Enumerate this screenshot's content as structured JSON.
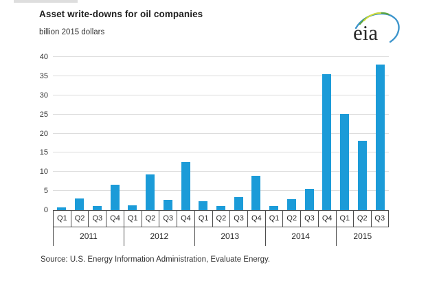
{
  "header": {
    "title": "Asset write-downs for oil companies",
    "subtitle": "billion 2015 dollars"
  },
  "logo": {
    "text": "eia"
  },
  "source": {
    "text": "Source:  U.S. Energy Information Administration, Evaluate Energy."
  },
  "colors": {
    "bar": "#1b9bd8",
    "gridline": "#dcdcdc",
    "axis": "#4d4d4d",
    "text": "#333333",
    "logo_swoosh_blue": "#3d95cc",
    "logo_swoosh_green": "#5ba53f",
    "logo_swoosh_yellow": "#d4db3a"
  },
  "chart_data": {
    "type": "bar",
    "title": "Asset write-downs for oil companies",
    "ylabel": "billion 2015 dollars",
    "ylim": [
      0,
      40
    ],
    "ytick_step": 5,
    "grid": true,
    "legend": false,
    "groups": [
      {
        "year": "2011",
        "quarters": [
          "Q1",
          "Q2",
          "Q3",
          "Q4"
        ],
        "values": [
          0.7,
          3.0,
          1.1,
          6.6
        ]
      },
      {
        "year": "2012",
        "quarters": [
          "Q1",
          "Q2",
          "Q3",
          "Q4"
        ],
        "values": [
          1.2,
          9.4,
          2.7,
          12.5
        ]
      },
      {
        "year": "2013",
        "quarters": [
          "Q1",
          "Q2",
          "Q3",
          "Q4"
        ],
        "values": [
          2.3,
          1.1,
          3.4,
          9.0
        ]
      },
      {
        "year": "2014",
        "quarters": [
          "Q1",
          "Q2",
          "Q3",
          "Q4"
        ],
        "values": [
          1.1,
          2.9,
          5.5,
          35.6
        ]
      },
      {
        "year": "2015",
        "quarters": [
          "Q1",
          "Q2",
          "Q3"
        ],
        "values": [
          25.2,
          18.1,
          38.1
        ]
      }
    ]
  }
}
